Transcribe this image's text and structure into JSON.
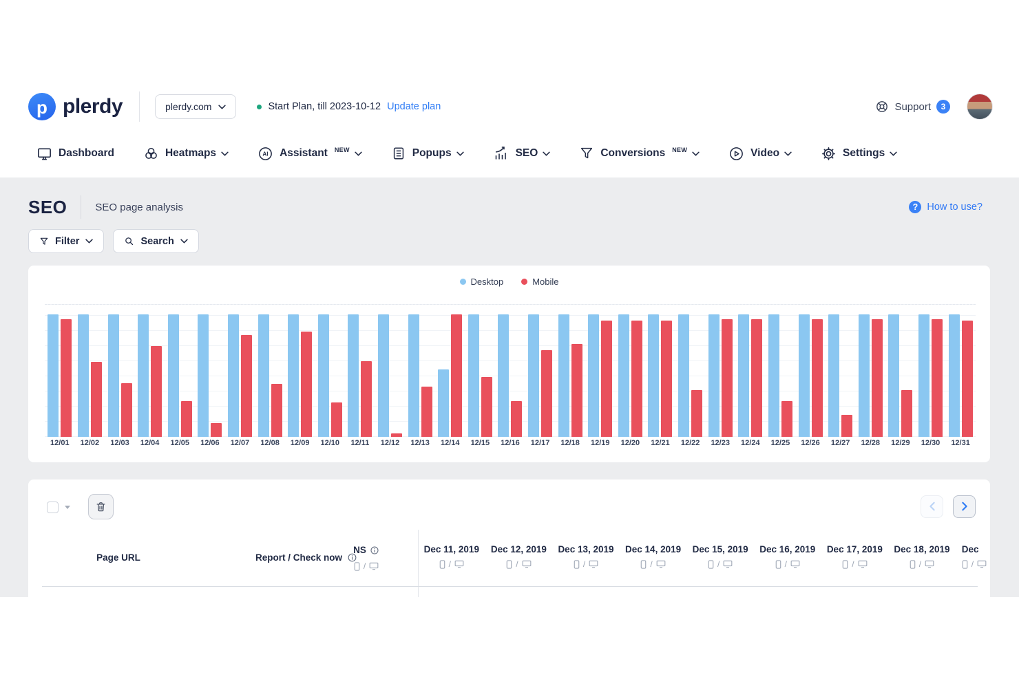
{
  "header": {
    "brand": "plerdy",
    "domain": "plerdy.com",
    "plan_status": "Start Plan, till 2023-10-12",
    "update_plan_label": "Update plan",
    "support_label": "Support",
    "support_badge": "3"
  },
  "nav": {
    "items": [
      {
        "label": "Dashboard",
        "icon": "dashboard-monitor-icon",
        "has_dropdown": false,
        "badge": ""
      },
      {
        "label": "Heatmaps",
        "icon": "heatmaps-icon",
        "has_dropdown": true,
        "badge": ""
      },
      {
        "label": "Assistant",
        "icon": "ai-assistant-icon",
        "has_dropdown": true,
        "badge": "NEW"
      },
      {
        "label": "Popups",
        "icon": "popups-icon",
        "has_dropdown": true,
        "badge": ""
      },
      {
        "label": "SEO",
        "icon": "seo-chart-icon",
        "has_dropdown": true,
        "badge": ""
      },
      {
        "label": "Conversions",
        "icon": "conversions-funnel-icon",
        "has_dropdown": true,
        "badge": "NEW"
      },
      {
        "label": "Video",
        "icon": "video-icon",
        "has_dropdown": true,
        "badge": ""
      },
      {
        "label": "Settings",
        "icon": "settings-gear-icon",
        "has_dropdown": true,
        "badge": ""
      }
    ]
  },
  "page": {
    "title": "SEO",
    "subtitle": "SEO page analysis",
    "help_link": "How to use?",
    "filter_label": "Filter",
    "search_label": "Search"
  },
  "chart_data": {
    "type": "bar",
    "title": "",
    "legend_position": "top",
    "grid": true,
    "ylim": [
      0,
      100
    ],
    "categories": [
      "12/01",
      "12/02",
      "12/03",
      "12/04",
      "12/05",
      "12/06",
      "12/07",
      "12/08",
      "12/09",
      "12/10",
      "12/11",
      "12/12",
      "12/13",
      "12/14",
      "12/15",
      "12/16",
      "12/17",
      "12/18",
      "12/19",
      "12/20",
      "12/21",
      "12/22",
      "12/23",
      "12/24",
      "12/25",
      "12/26",
      "12/27",
      "12/28",
      "12/29",
      "12/30",
      "12/31"
    ],
    "series": [
      {
        "name": "Desktop",
        "color": "#8BC7F1",
        "values": [
          100,
          100,
          100,
          100,
          100,
          100,
          100,
          100,
          100,
          100,
          100,
          100,
          100,
          55,
          100,
          100,
          100,
          100,
          100,
          100,
          100,
          100,
          100,
          100,
          100,
          100,
          100,
          100,
          100,
          100,
          100
        ]
      },
      {
        "name": "Mobile",
        "color": "#E9505C",
        "values": [
          96,
          61,
          44,
          74,
          29,
          11,
          83,
          43,
          86,
          28,
          62,
          3,
          41,
          100,
          49,
          29,
          71,
          76,
          95,
          95,
          95,
          38,
          96,
          96,
          29,
          96,
          18,
          96,
          38,
          96,
          95
        ]
      }
    ]
  },
  "table": {
    "headers": {
      "page_url": "Page URL",
      "report": "Report / Check now",
      "ns": "NS",
      "device_slash": "/"
    },
    "date_columns": [
      "Dec 11, 2019",
      "Dec 12, 2019",
      "Dec 13, 2019",
      "Dec 14, 2019",
      "Dec 15, 2019",
      "Dec 16, 2019",
      "Dec 17, 2019",
      "Dec 18, 2019",
      "Dec"
    ]
  }
}
